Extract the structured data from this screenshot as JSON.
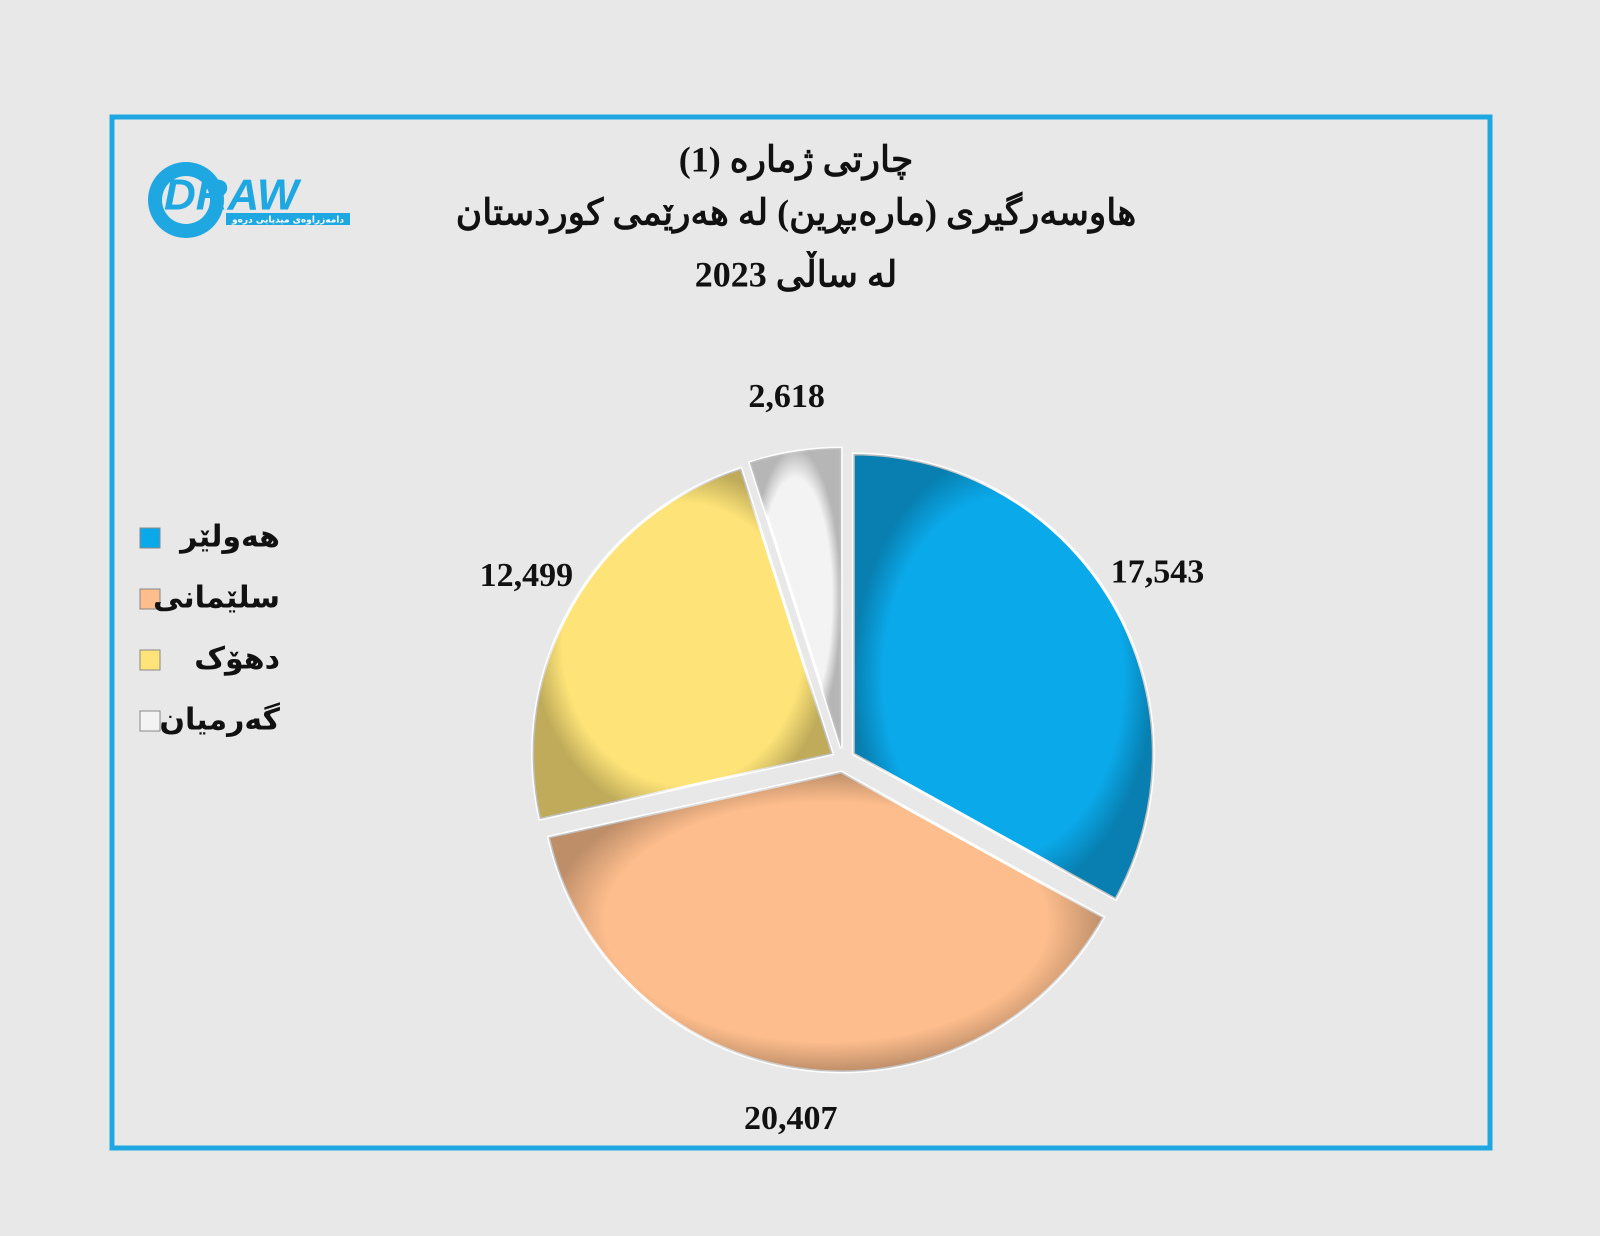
{
  "chart_data": {
    "type": "pie",
    "title": [
      "چارتی ژمارە (1)",
      "هاوسەرگیری (مارەبڕین) لە هەرێمی کوردستان",
      "لە ساڵی 2023"
    ],
    "categories": [
      "هەولێر",
      "سلێمانی",
      "دهۆک",
      "گەرمیان"
    ],
    "values": [
      17543,
      20407,
      12499,
      2618
    ],
    "value_labels": [
      "17,543",
      "20,407",
      "12,499",
      "2,618"
    ],
    "colors": [
      "#0aa9ea",
      "#fdbd8c",
      "#fee478",
      "#f3f3f3"
    ],
    "legend": "left"
  },
  "logo": {
    "text": "DRAW",
    "tagline": "دامەزراوەی میدیایی درەو"
  }
}
